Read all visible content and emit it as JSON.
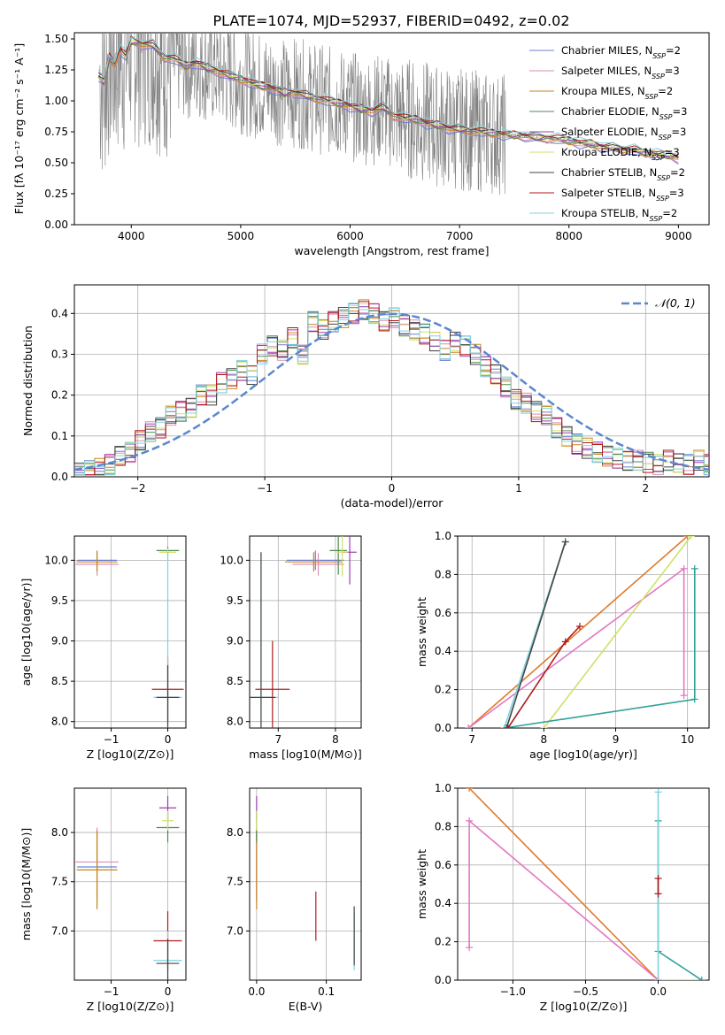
{
  "figure_title": "PLATE=1074, MJD=52937, FIBERID=0492, z=0.02",
  "colors": {
    "c_miles": "#6b7fd0",
    "s_miles": "#d98fb8",
    "k_miles": "#c8861e",
    "c_elodie": "#4f8a4f",
    "s_elodie": "#9d3db3",
    "k_elodie": "#cfe06a",
    "c_stelib": "#444444",
    "s_stelib": "#b01b1b",
    "k_stelib": "#7fd3de",
    "data": "#808080",
    "gauss": "#5b87d0",
    "grid": "#b0b0b0",
    "orange": "#e07a2a",
    "pink": "#e377c2",
    "teal": "#2fa39a"
  },
  "chart_data": [
    {
      "id": "spectrum",
      "type": "line",
      "title": "PLATE=1074, MJD=52937, FIBERID=0492, z=0.02",
      "xlabel": "wavelength [Angstrom, rest frame]",
      "ylabel": "Flux [fλ 10⁻¹⁷ erg cm⁻² s⁻¹ A⁻¹]",
      "xlim": [
        3480,
        9280
      ],
      "ylim": [
        0,
        1.55
      ],
      "xticks": [
        4000,
        5000,
        6000,
        7000,
        8000,
        9000
      ],
      "yticks": [
        0.0,
        0.25,
        0.5,
        0.75,
        1.0,
        1.25,
        1.5
      ],
      "legend_position": "top-right",
      "grid": false,
      "series": [
        {
          "name": "Chabrier MILES, N_SSP=2",
          "color_key": "c_miles"
        },
        {
          "name": "Salpeter MILES, N_SSP=3",
          "color_key": "s_miles"
        },
        {
          "name": "Kroupa MILES, N_SSP=2",
          "color_key": "k_miles"
        },
        {
          "name": "Chabrier ELODIE, N_SSP=3",
          "color_key": "c_elodie"
        },
        {
          "name": "Salpeter ELODIE, N_SSP=3",
          "color_key": "s_elodie"
        },
        {
          "name": "Kroupa ELODIE, N_SSP=3",
          "color_key": "k_elodie"
        },
        {
          "name": "Chabrier STELIB, N_SSP=2",
          "color_key": "c_stelib"
        },
        {
          "name": "Salpeter STELIB, N_SSP=3",
          "color_key": "s_stelib"
        },
        {
          "name": "Kroupa STELIB, N_SSP=2",
          "color_key": "k_stelib"
        }
      ],
      "model_continuum": {
        "x": [
          3700,
          3750,
          3800,
          3850,
          3900,
          3950,
          4000,
          4100,
          4200,
          4300,
          4400,
          4500,
          4600,
          4700,
          4800,
          4900,
          5000,
          5100,
          5200,
          5300,
          5400,
          5500,
          5600,
          5700,
          5800,
          5900,
          6000,
          6100,
          6200,
          6300,
          6400,
          6500,
          6600,
          6700,
          6800,
          6900,
          7000,
          7100,
          7200,
          7300,
          7400,
          7500,
          7600,
          7700,
          7800,
          7900,
          8000,
          8100,
          8200,
          8300,
          8400,
          8500,
          8600,
          8700,
          8800,
          8900,
          9000
        ],
        "y": [
          1.2,
          1.15,
          1.35,
          1.3,
          1.42,
          1.36,
          1.48,
          1.46,
          1.45,
          1.35,
          1.34,
          1.28,
          1.31,
          1.26,
          1.24,
          1.2,
          1.18,
          1.14,
          1.12,
          1.1,
          1.06,
          1.07,
          1.04,
          1.02,
          1.0,
          0.98,
          0.96,
          0.93,
          0.92,
          0.95,
          0.88,
          0.86,
          0.85,
          0.82,
          0.8,
          0.78,
          0.77,
          0.76,
          0.75,
          0.74,
          0.73,
          0.72,
          0.72,
          0.7,
          0.7,
          0.69,
          0.68,
          0.66,
          0.65,
          0.63,
          0.62,
          0.61,
          0.6,
          0.58,
          0.57,
          0.56,
          0.54
        ]
      }
    },
    {
      "id": "residuals",
      "type": "line",
      "xlabel": "(data-model)/error",
      "ylabel": "Normed distribution",
      "xlim": [
        -2.5,
        2.5
      ],
      "ylim": [
        0,
        0.47
      ],
      "xticks": [
        -2,
        -1,
        0,
        1,
        2
      ],
      "yticks": [
        0.0,
        0.1,
        0.2,
        0.3,
        0.4
      ],
      "grid": true,
      "legend_position": "top-right",
      "legend": "𝒩(0, 1)",
      "hist_bin_width": 0.1,
      "hist_values": [
        0.01,
        0.015,
        0.02,
        0.03,
        0.05,
        0.06,
        0.09,
        0.11,
        0.12,
        0.15,
        0.16,
        0.17,
        0.2,
        0.2,
        0.23,
        0.24,
        0.26,
        0.25,
        0.3,
        0.32,
        0.31,
        0.34,
        0.3,
        0.38,
        0.36,
        0.38,
        0.39,
        0.4,
        0.41,
        0.4,
        0.38,
        0.39,
        0.37,
        0.36,
        0.35,
        0.33,
        0.31,
        0.33,
        0.32,
        0.3,
        0.27,
        0.25,
        0.22,
        0.19,
        0.18,
        0.16,
        0.15,
        0.12,
        0.1,
        0.08,
        0.07,
        0.06,
        0.05,
        0.045,
        0.04,
        0.04,
        0.035,
        0.03,
        0.04,
        0.035,
        0.03,
        0.04,
        0.03,
        0.04,
        0.035
      ]
    },
    {
      "id": "age_vs_Z",
      "type": "scatter",
      "xlabel": "Z [log10(Z/Z⊙)]",
      "ylabel": "age  [log10(age/yr)]",
      "xlim": [
        -1.65,
        0.32
      ],
      "ylim": [
        7.92,
        10.3
      ],
      "xticks": [
        -1,
        0
      ],
      "yticks": [
        8.0,
        8.5,
        9.0,
        9.5,
        10.0
      ],
      "grid": true,
      "points": [
        {
          "x": -1.25,
          "y": 10.0,
          "xerr": 0.35,
          "yerr": 0.12,
          "color_key": "c_miles"
        },
        {
          "x": -1.25,
          "y": 9.95,
          "xerr": 0.38,
          "yerr": 0.14,
          "color_key": "s_miles"
        },
        {
          "x": -1.25,
          "y": 9.98,
          "xerr": 0.36,
          "yerr": 0.12,
          "color_key": "k_miles"
        },
        {
          "x": 0.0,
          "y": 10.12,
          "xerr": 0.2,
          "yerr": 0.05,
          "color_key": "c_elodie"
        },
        {
          "x": 0.0,
          "y": 10.1,
          "xerr": 0.15,
          "yerr": 0.05,
          "color_key": "k_elodie"
        },
        {
          "x": 0.0,
          "y": 8.4,
          "xerr": 0.28,
          "yerr": 0.4,
          "color_key": "s_stelib"
        },
        {
          "x": 0.0,
          "y": 8.3,
          "xerr": 0.25,
          "yerr": 1.8,
          "color_key": "k_stelib"
        },
        {
          "x": 0.0,
          "y": 8.3,
          "xerr": 0.2,
          "yerr": 0.4,
          "color_key": "c_stelib"
        }
      ]
    },
    {
      "id": "age_vs_mass",
      "type": "scatter",
      "xlabel": "mass [log10(M/M⊙)]",
      "ylabel": "",
      "xlim": [
        6.5,
        8.45
      ],
      "ylim": [
        7.92,
        10.3
      ],
      "xticks": [
        7,
        8
      ],
      "yticks": [
        8.0,
        8.5,
        9.0,
        9.5,
        10.0
      ],
      "grid": true,
      "points": [
        {
          "x": 7.65,
          "y": 10.0,
          "xerr": 0.5,
          "yerr": 0.12,
          "color_key": "c_miles"
        },
        {
          "x": 7.7,
          "y": 9.95,
          "xerr": 0.45,
          "yerr": 0.14,
          "color_key": "s_miles"
        },
        {
          "x": 7.62,
          "y": 9.98,
          "xerr": 0.5,
          "yerr": 0.12,
          "color_key": "k_miles"
        },
        {
          "x": 8.05,
          "y": 10.12,
          "xerr": 0.15,
          "yerr": 0.3,
          "color_key": "c_elodie"
        },
        {
          "x": 8.25,
          "y": 10.1,
          "xerr": 0.12,
          "yerr": 0.4,
          "color_key": "s_elodie"
        },
        {
          "x": 8.12,
          "y": 10.1,
          "xerr": 0.1,
          "yerr": 0.3,
          "color_key": "k_elodie"
        },
        {
          "x": 6.9,
          "y": 8.4,
          "xerr": 0.3,
          "yerr": 0.6,
          "color_key": "s_stelib"
        },
        {
          "x": 6.7,
          "y": 8.3,
          "xerr": 0.3,
          "yerr": 1.8,
          "color_key": "k_stelib"
        },
        {
          "x": 6.7,
          "y": 8.3,
          "xerr": 0.25,
          "yerr": 1.8,
          "color_key": "c_stelib"
        }
      ]
    },
    {
      "id": "massweight_vs_age",
      "type": "line",
      "xlabel": "age  [log10(age/yr)]",
      "ylabel": "mass weight",
      "xlim": [
        6.8,
        10.3
      ],
      "ylim": [
        0,
        1.0
      ],
      "xticks": [
        7,
        8,
        9,
        10
      ],
      "yticks": [
        0.0,
        0.2,
        0.4,
        0.6,
        0.8,
        1.0
      ],
      "grid": true,
      "series": [
        {
          "color_key": "orange",
          "x": [
            6.95,
            10.0
          ],
          "y": [
            0.0,
            1.0
          ]
        },
        {
          "color_key": "pink",
          "x": [
            6.95,
            9.95,
            9.95
          ],
          "y": [
            0.0,
            0.83,
            0.17
          ]
        },
        {
          "color_key": "k_elodie",
          "x": [
            8.0,
            10.05
          ],
          "y": [
            0.0,
            1.0
          ]
        },
        {
          "color_key": "teal",
          "x": [
            7.45,
            10.1,
            10.1
          ],
          "y": [
            0.0,
            0.15,
            0.83
          ]
        },
        {
          "color_key": "s_stelib",
          "x": [
            7.5,
            8.3,
            8.5
          ],
          "y": [
            0.0,
            0.45,
            0.53
          ]
        },
        {
          "color_key": "k_stelib",
          "x": [
            7.45,
            8.3
          ],
          "y": [
            0.0,
            0.97
          ]
        },
        {
          "color_key": "c_stelib",
          "x": [
            7.48,
            8.3
          ],
          "y": [
            0.0,
            0.97
          ]
        }
      ]
    },
    {
      "id": "mass_vs_Z",
      "type": "scatter",
      "xlabel": "Z [log10(Z/Z⊙)]",
      "ylabel": "mass [log10(M/M⊙)]",
      "xlim": [
        -1.65,
        0.32
      ],
      "ylim": [
        6.5,
        8.45
      ],
      "xticks": [
        -1,
        0
      ],
      "yticks": [
        7.0,
        7.5,
        8.0
      ],
      "grid": true,
      "points": [
        {
          "x": -1.25,
          "y": 7.65,
          "xerr": 0.35,
          "yerr": 0.35,
          "color_key": "c_miles"
        },
        {
          "x": -1.25,
          "y": 7.7,
          "xerr": 0.38,
          "yerr": 0.35,
          "color_key": "s_miles"
        },
        {
          "x": -1.25,
          "y": 7.62,
          "xerr": 0.36,
          "yerr": 0.4,
          "color_key": "k_miles"
        },
        {
          "x": 0.0,
          "y": 8.05,
          "xerr": 0.2,
          "yerr": 0.15,
          "color_key": "c_elodie"
        },
        {
          "x": 0.0,
          "y": 8.25,
          "xerr": 0.15,
          "yerr": 0.12,
          "color_key": "s_elodie"
        },
        {
          "x": 0.0,
          "y": 8.12,
          "xerr": 0.1,
          "yerr": 0.1,
          "color_key": "k_elodie"
        },
        {
          "x": 0.0,
          "y": 6.9,
          "xerr": 0.25,
          "yerr": 0.3,
          "color_key": "s_stelib"
        },
        {
          "x": 0.0,
          "y": 6.7,
          "xerr": 0.25,
          "yerr": 0.3,
          "color_key": "k_stelib"
        },
        {
          "x": 0.0,
          "y": 6.67,
          "xerr": 0.2,
          "yerr": 0.25,
          "color_key": "c_stelib"
        }
      ]
    },
    {
      "id": "mass_vs_ebv",
      "type": "scatter",
      "xlabel": "E(B-V)",
      "ylabel": "",
      "xlim": [
        -0.01,
        0.15
      ],
      "ylim": [
        6.5,
        8.45
      ],
      "xticks": [
        0.0,
        0.1
      ],
      "yticks": [
        7.0,
        7.5,
        8.0
      ],
      "grid": true,
      "points": [
        {
          "x": 0.0,
          "y": 7.65,
          "yerr": 0.35,
          "color_key": "c_miles"
        },
        {
          "x": 0.0,
          "y": 7.7,
          "yerr": 0.35,
          "color_key": "s_miles"
        },
        {
          "x": 0.0,
          "y": 7.62,
          "yerr": 0.4,
          "color_key": "k_miles"
        },
        {
          "x": 0.0,
          "y": 8.05,
          "yerr": 0.15,
          "color_key": "c_elodie"
        },
        {
          "x": 0.0,
          "y": 8.25,
          "yerr": 0.12,
          "color_key": "s_elodie"
        },
        {
          "x": 0.0,
          "y": 8.12,
          "yerr": 0.1,
          "color_key": "k_elodie"
        },
        {
          "x": 0.085,
          "y": 7.15,
          "yerr": 0.25,
          "color_key": "s_stelib"
        },
        {
          "x": 0.14,
          "y": 6.9,
          "yerr": 0.3,
          "color_key": "k_stelib"
        },
        {
          "x": 0.14,
          "y": 6.95,
          "yerr": 0.3,
          "color_key": "c_stelib"
        }
      ]
    },
    {
      "id": "massweight_vs_Z",
      "type": "line",
      "xlabel": "Z [log10(Z/Z⊙)]",
      "ylabel": "mass weight",
      "xlim": [
        -1.38,
        0.35
      ],
      "ylim": [
        0,
        1.0
      ],
      "xticks": [
        -1.0,
        -0.5,
        0.0
      ],
      "yticks": [
        0.0,
        0.2,
        0.4,
        0.6,
        0.8,
        1.0
      ],
      "grid": true,
      "series": [
        {
          "color_key": "orange",
          "x": [
            -1.3,
            0.0
          ],
          "y": [
            1.0,
            0.0
          ]
        },
        {
          "color_key": "pink",
          "x": [
            -1.3,
            -1.3,
            0.0
          ],
          "y": [
            0.17,
            0.83,
            0.0
          ]
        },
        {
          "color_key": "k_elodie",
          "x": [
            0.0,
            0.3
          ],
          "y": [
            0.0,
            0.0
          ]
        },
        {
          "color_key": "teal",
          "x": [
            0.0,
            0.0,
            0.3
          ],
          "y": [
            0.83,
            0.15,
            0.0
          ]
        },
        {
          "color_key": "k_stelib",
          "x": [
            0.0,
            0.0
          ],
          "y": [
            0.0,
            0.98
          ]
        },
        {
          "color_key": "s_stelib",
          "x": [
            0.0,
            0.0
          ],
          "y": [
            0.45,
            0.53
          ]
        }
      ]
    }
  ]
}
